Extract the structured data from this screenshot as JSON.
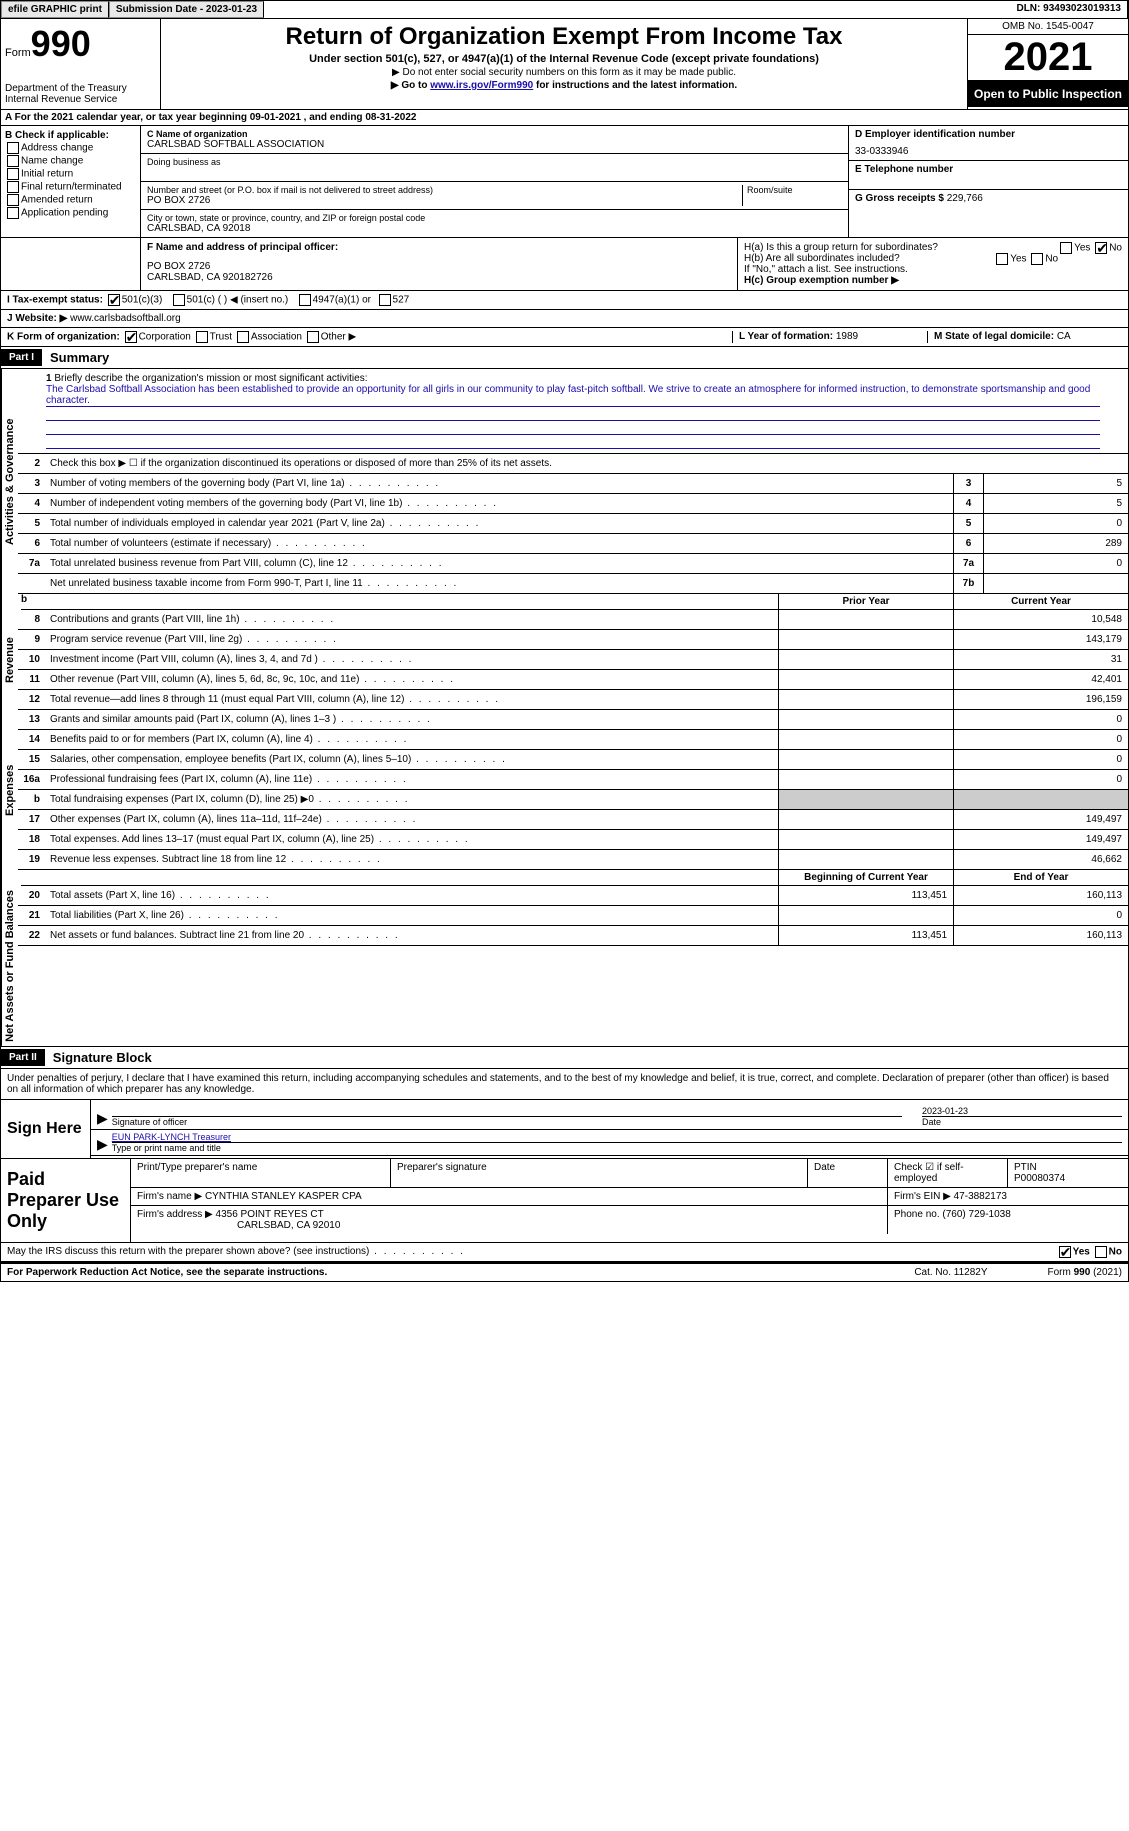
{
  "header": {
    "efile": "efile GRAPHIC print",
    "submission_label": "Submission Date - 2023-01-23",
    "dln_label": "DLN: 93493023019313"
  },
  "form": {
    "form_label": "Form",
    "form_num": "990",
    "dept": "Department of the Treasury",
    "irs": "Internal Revenue Service",
    "title": "Return of Organization Exempt From Income Tax",
    "subtitle": "Under section 501(c), 527, or 4947(a)(1) of the Internal Revenue Code (except private foundations)",
    "note1": "▶ Do not enter social security numbers on this form as it may be made public.",
    "note2_pre": "▶ Go to ",
    "note2_link": "www.irs.gov/Form990",
    "note2_post": " for instructions and the latest information.",
    "omb": "OMB No. 1545-0047",
    "year": "2021",
    "inspection": "Open to Public Inspection"
  },
  "section_a": "A For the 2021 calendar year, or tax year beginning 09-01-2021   , and ending 08-31-2022",
  "section_b": {
    "label": "B Check if applicable:",
    "opts": [
      "Address change",
      "Name change",
      "Initial return",
      "Final return/terminated",
      "Amended return",
      "Application pending"
    ]
  },
  "section_c": {
    "name_label": "C Name of organization",
    "name": "CARLSBAD SOFTBALL ASSOCIATION",
    "dba_label": "Doing business as",
    "addr_label": "Number and street (or P.O. box if mail is not delivered to street address)",
    "room_label": "Room/suite",
    "addr": "PO BOX 2726",
    "city_label": "City or town, state or province, country, and ZIP or foreign postal code",
    "city": "CARLSBAD, CA  92018"
  },
  "section_d": {
    "label": "D Employer identification number",
    "value": "33-0333946"
  },
  "section_e": {
    "label": "E Telephone number",
    "value": ""
  },
  "section_g": {
    "label": "G Gross receipts $",
    "value": "229,766"
  },
  "section_f": {
    "label": "F Name and address of principal officer:",
    "line1": "PO BOX 2726",
    "line2": "CARLSBAD, CA  920182726"
  },
  "section_h": {
    "ha": "H(a)  Is this a group return for subordinates?",
    "hb": "H(b)  Are all subordinates included?",
    "hb_note": "If \"No,\" attach a list. See instructions.",
    "hc": "H(c)  Group exemption number ▶"
  },
  "section_i": {
    "label": "I  Tax-exempt status:",
    "o1": "501(c)(3)",
    "o2": "501(c) (  ) ◀ (insert no.)",
    "o3": "4947(a)(1) or",
    "o4": "527"
  },
  "section_j": {
    "label": "J  Website: ▶",
    "value": "www.carlsbadsoftball.org"
  },
  "section_k": {
    "label": "K Form of organization:",
    "o1": "Corporation",
    "o2": "Trust",
    "o3": "Association",
    "o4": "Other ▶"
  },
  "section_l": {
    "label": "L Year of formation:",
    "value": "1989"
  },
  "section_m": {
    "label": "M State of legal domicile:",
    "value": "CA"
  },
  "part1": {
    "header": "Part I",
    "title": "Summary",
    "vert1": "Activities & Governance",
    "vert2": "Revenue",
    "vert3": "Expenses",
    "vert4": "Net Assets or Fund Balances",
    "line1_label": "Briefly describe the organization's mission or most significant activities:",
    "line1_text": "The Carlsbad Softball Association has been established to provide an opportunity for all girls in our community to play fast-pitch softball. We strive to create an atmosphere for informed instruction, to demonstrate sportsmanship and good character.",
    "line2": "Check this box ▶ ☐ if the organization discontinued its operations or disposed of more than 25% of its net assets.",
    "rows_gov": [
      {
        "n": "3",
        "d": "Number of voting members of the governing body (Part VI, line 1a)",
        "b": "3",
        "v": "5"
      },
      {
        "n": "4",
        "d": "Number of independent voting members of the governing body (Part VI, line 1b)",
        "b": "4",
        "v": "5"
      },
      {
        "n": "5",
        "d": "Total number of individuals employed in calendar year 2021 (Part V, line 2a)",
        "b": "5",
        "v": "0"
      },
      {
        "n": "6",
        "d": "Total number of volunteers (estimate if necessary)",
        "b": "6",
        "v": "289"
      },
      {
        "n": "7a",
        "d": "Total unrelated business revenue from Part VIII, column (C), line 12",
        "b": "7a",
        "v": "0"
      },
      {
        "n": "",
        "d": "Net unrelated business taxable income from Form 990-T, Part I, line 11",
        "b": "7b",
        "v": ""
      }
    ],
    "col_prior": "Prior Year",
    "col_current": "Current Year",
    "rows_rev": [
      {
        "n": "8",
        "d": "Contributions and grants (Part VIII, line 1h)",
        "p": "",
        "c": "10,548"
      },
      {
        "n": "9",
        "d": "Program service revenue (Part VIII, line 2g)",
        "p": "",
        "c": "143,179"
      },
      {
        "n": "10",
        "d": "Investment income (Part VIII, column (A), lines 3, 4, and 7d )",
        "p": "",
        "c": "31"
      },
      {
        "n": "11",
        "d": "Other revenue (Part VIII, column (A), lines 5, 6d, 8c, 9c, 10c, and 11e)",
        "p": "",
        "c": "42,401"
      },
      {
        "n": "12",
        "d": "Total revenue—add lines 8 through 11 (must equal Part VIII, column (A), line 12)",
        "p": "",
        "c": "196,159"
      }
    ],
    "rows_exp": [
      {
        "n": "13",
        "d": "Grants and similar amounts paid (Part IX, column (A), lines 1–3 )",
        "p": "",
        "c": "0"
      },
      {
        "n": "14",
        "d": "Benefits paid to or for members (Part IX, column (A), line 4)",
        "p": "",
        "c": "0"
      },
      {
        "n": "15",
        "d": "Salaries, other compensation, employee benefits (Part IX, column (A), lines 5–10)",
        "p": "",
        "c": "0"
      },
      {
        "n": "16a",
        "d": "Professional fundraising fees (Part IX, column (A), line 11e)",
        "p": "",
        "c": "0"
      },
      {
        "n": "b",
        "d": "Total fundraising expenses (Part IX, column (D), line 25) ▶0",
        "p": "shaded",
        "c": "shaded"
      },
      {
        "n": "17",
        "d": "Other expenses (Part IX, column (A), lines 11a–11d, 11f–24e)",
        "p": "",
        "c": "149,497"
      },
      {
        "n": "18",
        "d": "Total expenses. Add lines 13–17 (must equal Part IX, column (A), line 25)",
        "p": "",
        "c": "149,497"
      },
      {
        "n": "19",
        "d": "Revenue less expenses. Subtract line 18 from line 12",
        "p": "",
        "c": "46,662"
      }
    ],
    "col_begin": "Beginning of Current Year",
    "col_end": "End of Year",
    "rows_net": [
      {
        "n": "20",
        "d": "Total assets (Part X, line 16)",
        "p": "113,451",
        "c": "160,113"
      },
      {
        "n": "21",
        "d": "Total liabilities (Part X, line 26)",
        "p": "",
        "c": "0"
      },
      {
        "n": "22",
        "d": "Net assets or fund balances. Subtract line 21 from line 20",
        "p": "113,451",
        "c": "160,113"
      }
    ]
  },
  "part2": {
    "header": "Part II",
    "title": "Signature Block",
    "declaration": "Under penalties of perjury, I declare that I have examined this return, including accompanying schedules and statements, and to the best of my knowledge and belief, it is true, correct, and complete. Declaration of preparer (other than officer) is based on all information of which preparer has any knowledge.",
    "sign_here": "Sign Here",
    "sig_officer": "Signature of officer",
    "sig_date": "2023-01-23",
    "date_label": "Date",
    "name_title": "EUN PARK-LYNCH  Treasurer",
    "name_title_label": "Type or print name and title",
    "paid_label": "Paid Preparer Use Only",
    "prep_name_label": "Print/Type preparer's name",
    "prep_sig_label": "Preparer's signature",
    "prep_date_label": "Date",
    "check_self": "Check ☑ if self-employed",
    "ptin_label": "PTIN",
    "ptin": "P00080374",
    "firm_name_label": "Firm's name    ▶",
    "firm_name": "CYNTHIA STANLEY KASPER CPA",
    "firm_ein_label": "Firm's EIN ▶",
    "firm_ein": "47-3882173",
    "firm_addr_label": "Firm's address ▶",
    "firm_addr1": "4356 POINT REYES CT",
    "firm_addr2": "CARLSBAD, CA  92010",
    "phone_label": "Phone no.",
    "phone": "(760) 729-1038",
    "discuss": "May the IRS discuss this return with the preparer shown above? (see instructions)",
    "yes": "Yes",
    "no": "No"
  },
  "footer": {
    "pra": "For Paperwork Reduction Act Notice, see the separate instructions.",
    "cat": "Cat. No. 11282Y",
    "form": "Form 990 (2021)"
  }
}
